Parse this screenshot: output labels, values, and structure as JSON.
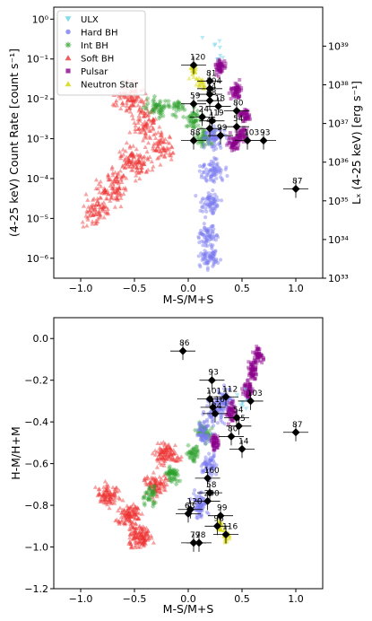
{
  "chart_data": [
    {
      "type": "scatter",
      "xlabel": "M-S/M+S",
      "ylabel": "(4-25 keV) Count Rate [count s⁻¹]",
      "ylabel_right": "Lₓ (4-25 keV) [erg s⁻¹]",
      "xlim": [
        -1.25,
        1.25
      ],
      "ylim_log10": [
        -6.5,
        0.3
      ],
      "y_scale": "log",
      "xticks": [
        "−1.0",
        "−0.5",
        "0.0",
        "0.5",
        "1.0"
      ],
      "yticks": [
        "10⁻⁶",
        "10⁻⁵",
        "10⁻⁴",
        "10⁻³",
        "10⁻²",
        "10⁻¹",
        "10⁰"
      ],
      "yticks_right": [
        "10³³",
        "10³⁴",
        "10³⁵",
        "10³⁶",
        "10³⁷",
        "10³⁸",
        "10³⁹"
      ],
      "legend_position": "top-left",
      "legend": [
        {
          "name": "ULX",
          "color": "#5fd3e8",
          "marker": "tri-down"
        },
        {
          "name": "Hard BH",
          "color": "#7b7bf0",
          "marker": "circle"
        },
        {
          "name": "Int BH",
          "color": "#2ca02c",
          "marker": "star"
        },
        {
          "name": "Soft BH",
          "color": "#ee3333",
          "marker": "tri-up"
        },
        {
          "name": "Pulsar",
          "color": "#8b008b",
          "marker": "square"
        },
        {
          "name": "Neutron Star",
          "color": "#d4d400",
          "marker": "tri-up"
        }
      ],
      "labeled_sources": [
        {
          "id": "120",
          "x": 0.05,
          "y": 0.07
        },
        {
          "id": "81",
          "x": 0.2,
          "y": 0.028
        },
        {
          "id": "104",
          "x": 0.2,
          "y": 0.018
        },
        {
          "id": "14",
          "x": 0.2,
          "y": 0.013
        },
        {
          "id": "68",
          "x": 0.2,
          "y": 0.009
        },
        {
          "id": "59",
          "x": 0.05,
          "y": 0.0075
        },
        {
          "id": "18",
          "x": 0.28,
          "y": 0.0065
        },
        {
          "id": "80",
          "x": 0.45,
          "y": 0.005
        },
        {
          "id": "24",
          "x": 0.13,
          "y": 0.0035
        },
        {
          "id": "119",
          "x": 0.22,
          "y": 0.0028
        },
        {
          "id": "54",
          "x": 0.45,
          "y": 0.002
        },
        {
          "id": "45",
          "x": 0.2,
          "y": 0.0018
        },
        {
          "id": "99",
          "x": 0.3,
          "y": 0.0012
        },
        {
          "id": "88",
          "x": 0.05,
          "y": 0.0009
        },
        {
          "id": "103",
          "x": 0.55,
          "y": 0.0009
        },
        {
          "id": "93",
          "x": 0.7,
          "y": 0.0009
        },
        {
          "id": "87",
          "x": 1.0,
          "y": 5.5e-05
        }
      ]
    },
    {
      "type": "scatter",
      "xlabel": "M-S/M+S",
      "ylabel": "H-M/H+M",
      "xlim": [
        -1.25,
        1.25
      ],
      "ylim": [
        -1.2,
        0.1
      ],
      "xticks": [
        "−1.0",
        "−0.5",
        "0.0",
        "0.5",
        "1.0"
      ],
      "yticks": [
        "−1.2",
        "−1.0",
        "−0.8",
        "−0.6",
        "−0.4",
        "−0.2",
        "0.0"
      ],
      "labeled_sources": [
        {
          "id": "86",
          "x": -0.05,
          "y": -0.06
        },
        {
          "id": "93",
          "x": 0.22,
          "y": -0.2
        },
        {
          "id": "101",
          "x": 0.2,
          "y": -0.29
        },
        {
          "id": "112",
          "x": 0.35,
          "y": -0.28
        },
        {
          "id": "103",
          "x": 0.58,
          "y": -0.3
        },
        {
          "id": "116",
          "x": 0.23,
          "y": -0.33
        },
        {
          "id": "24",
          "x": 0.25,
          "y": -0.36
        },
        {
          "id": "54",
          "x": 0.45,
          "y": -0.38
        },
        {
          "id": "45",
          "x": 0.47,
          "y": -0.42
        },
        {
          "id": "80",
          "x": 0.4,
          "y": -0.47
        },
        {
          "id": "14",
          "x": 0.5,
          "y": -0.53
        },
        {
          "id": "87",
          "x": 1.0,
          "y": -0.45
        },
        {
          "id": "160",
          "x": 0.18,
          "y": -0.67
        },
        {
          "id": "58",
          "x": 0.2,
          "y": -0.74
        },
        {
          "id": "200",
          "x": 0.18,
          "y": -0.78
        },
        {
          "id": "120",
          "x": 0.02,
          "y": -0.82
        },
        {
          "id": "63",
          "x": 0.0,
          "y": -0.84
        },
        {
          "id": "99",
          "x": 0.3,
          "y": -0.85
        },
        {
          "id": "98",
          "x": 0.27,
          "y": -0.9
        },
        {
          "id": "116",
          "x": 0.35,
          "y": -0.94
        },
        {
          "id": "79",
          "x": 0.05,
          "y": -0.98
        },
        {
          "id": "78",
          "x": 0.1,
          "y": -0.98
        }
      ]
    }
  ]
}
